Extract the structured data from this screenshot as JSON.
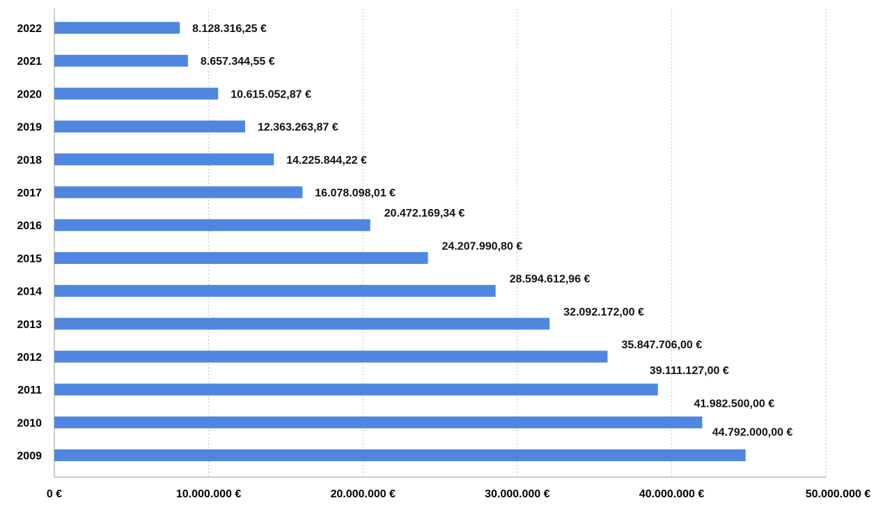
{
  "chart_data": {
    "type": "bar",
    "orientation": "horizontal",
    "categories": [
      "2022",
      "2021",
      "2020",
      "2019",
      "2018",
      "2017",
      "2016",
      "2015",
      "2014",
      "2013",
      "2012",
      "2011",
      "2010",
      "2009"
    ],
    "values": [
      8128316.25,
      8657344.55,
      10615052.87,
      12363263.87,
      14225844.22,
      16078098.01,
      20472169.34,
      24207990.8,
      28594612.96,
      32092172.0,
      35847706.0,
      39111127.0,
      41982500.0,
      44792000.0
    ],
    "value_labels": [
      "8.128.316,25 €",
      "8.657.344,55 €",
      "10.615.052,87 €",
      "12.363.263,87 €",
      "14.225.844,22 €",
      "16.078.098,01 €",
      "20.472.169,34 €",
      "24.207.990,80 €",
      "28.594.612,96 €",
      "32.092.172,00 €",
      "35.847.706,00 €",
      "39.111.127,00 €",
      "41.982.500,00 €",
      "44.792.000,00 €"
    ],
    "x_ticks": [
      0,
      10000000,
      20000000,
      30000000,
      40000000,
      50000000
    ],
    "x_tick_labels": [
      "0 €",
      "10.000.000 €",
      "20.000.000 €",
      "30.000.000 €",
      "40.000.000 €",
      "50.000.000 €"
    ],
    "xlim": [
      0,
      50000000
    ],
    "title": "",
    "xlabel": "",
    "ylabel": "",
    "grid": "vertical",
    "legend": "none",
    "bar_color": "#4f86e0"
  }
}
